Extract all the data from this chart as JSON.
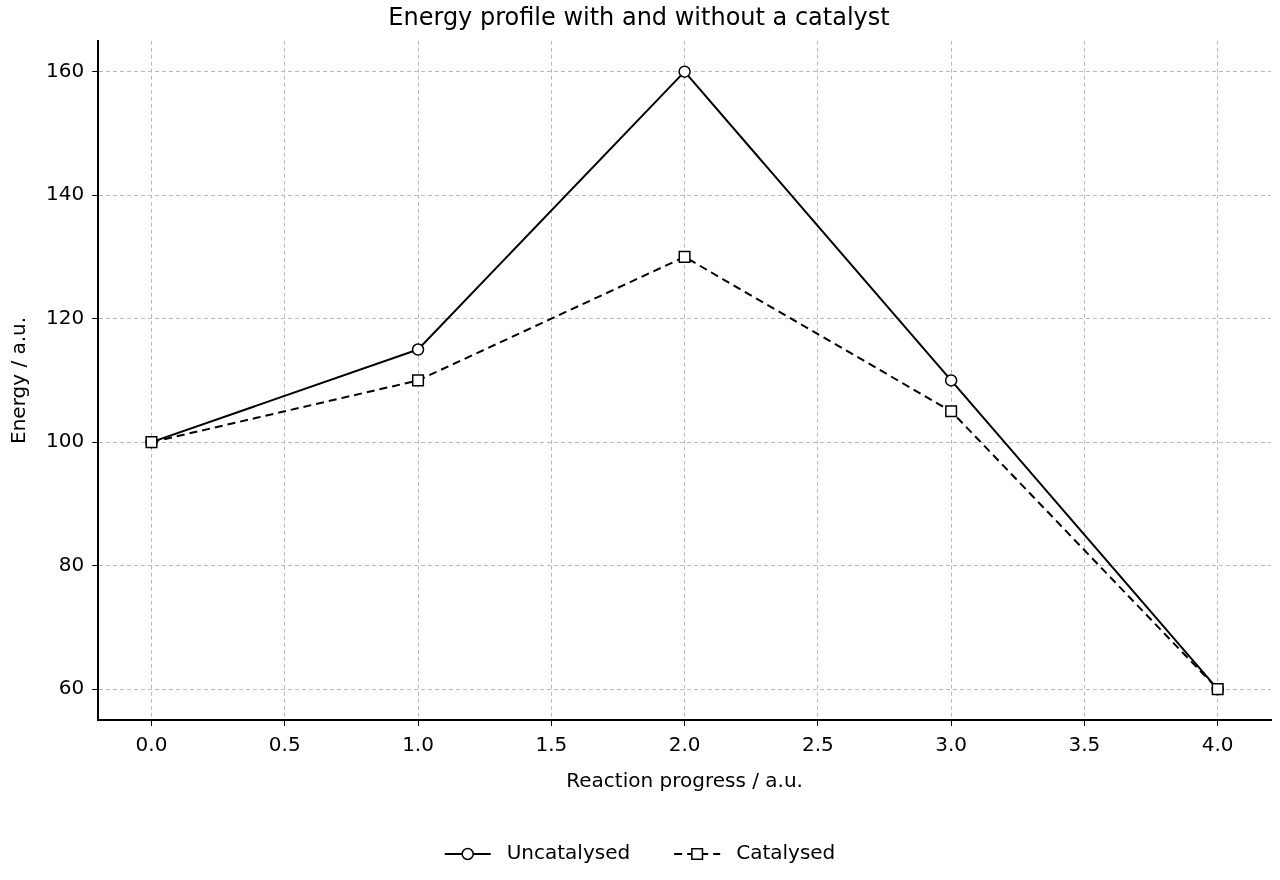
{
  "chart_data": {
    "type": "line",
    "title": "Energy profile with and without a catalyst",
    "xlabel": "Reaction progress / a.u.",
    "ylabel": "Energy / a.u.",
    "x": [
      0,
      1,
      2,
      3,
      4
    ],
    "series": [
      {
        "name": "Uncatalysed",
        "color": "#000000",
        "values": [
          100,
          115,
          160,
          110,
          60
        ],
        "marker": "circle",
        "line_style": "solid"
      },
      {
        "name": "Catalysed",
        "color": "#000000",
        "values": [
          100,
          110,
          130,
          105,
          60
        ],
        "marker": "square",
        "line_style": "dashed"
      }
    ],
    "xlim": [
      -0.2,
      4.2
    ],
    "xticks": [
      {
        "value": 0,
        "label": "0.0"
      },
      {
        "value": 0.5,
        "label": "0.5"
      },
      {
        "value": 1,
        "label": "1.0"
      },
      {
        "value": 1.5,
        "label": "1.5"
      },
      {
        "value": 2,
        "label": "2.0"
      },
      {
        "value": 2.5,
        "label": "2.5"
      },
      {
        "value": 3,
        "label": "3.0"
      },
      {
        "value": 3.5,
        "label": "3.5"
      },
      {
        "value": 4,
        "label": "4.0"
      }
    ],
    "ylim": [
      55,
      165
    ],
    "yticks": [
      60,
      80,
      100,
      120,
      140,
      160
    ],
    "grid": true,
    "legend": "bottom"
  }
}
